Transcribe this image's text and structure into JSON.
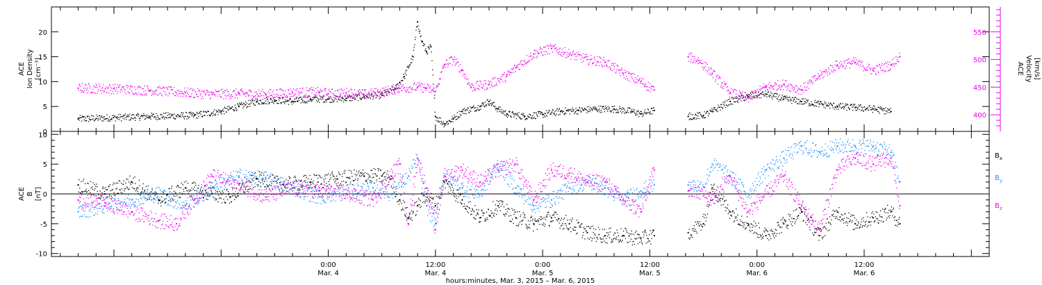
{
  "chart_data": [
    {
      "type": "scatter",
      "panel": "top",
      "ylabel": [
        "ACE",
        "Ion Density",
        "[cm⁻³]"
      ],
      "ylabel_right": [
        "ACE",
        "Velocity",
        "[km/s]"
      ],
      "ylim": [
        0,
        25
      ],
      "yticks": [
        "0",
        "5",
        "10",
        "15",
        "20"
      ],
      "ylim_right": [
        370,
        595
      ],
      "yticks_right": [
        "400",
        "450",
        "500",
        "550"
      ],
      "series": [
        {
          "name": "Ion Density",
          "axis": "left",
          "color": "#000000",
          "points": [
            [
              -28,
              2.5
            ],
            [
              -20,
              3
            ],
            [
              -15,
              3.2
            ],
            [
              -12,
              4
            ],
            [
              -10,
              5
            ],
            [
              -8,
              6
            ],
            [
              -6,
              6.3
            ],
            [
              -4,
              6
            ],
            [
              -2,
              6.5
            ],
            [
              0,
              6.5
            ],
            [
              2,
              6.6
            ],
            [
              4,
              7
            ],
            [
              6,
              7.3
            ],
            [
              7.5,
              8.5
            ],
            [
              8.5,
              11
            ],
            [
              9.5,
              15
            ],
            [
              10,
              22
            ],
            [
              10.5,
              18
            ],
            [
              11,
              16
            ],
            [
              11.5,
              17
            ],
            [
              12,
              3
            ],
            [
              13,
              1.5
            ],
            [
              14,
              2.5
            ],
            [
              15,
              4
            ],
            [
              17,
              5
            ],
            [
              18,
              6
            ],
            [
              19,
              4.5
            ],
            [
              20,
              3.5
            ],
            [
              22,
              3
            ],
            [
              24,
              3.4
            ],
            [
              26,
              4
            ],
            [
              28,
              4.2
            ],
            [
              30,
              4.5
            ],
            [
              32,
              4.5
            ],
            [
              34,
              4
            ],
            [
              35,
              3.5
            ],
            [
              36.5,
              4.2
            ]
          ],
          "gaps": [
            [
              36.8,
              40.2
            ]
          ]
        },
        {
          "name": "Velocity",
          "axis": "right",
          "color": "#ee00ee",
          "points": [
            [
              -28,
              448
            ],
            [
              -24,
              447
            ],
            [
              -20,
              444
            ],
            [
              -16,
              440
            ],
            [
              -13,
              437
            ],
            [
              -10,
              438
            ],
            [
              -7,
              437
            ],
            [
              -4,
              440
            ],
            [
              -1,
              441
            ],
            [
              0,
              438
            ],
            [
              2,
              440
            ],
            [
              4,
              437
            ],
            [
              6,
              441
            ],
            [
              8,
              448
            ],
            [
              10,
              450
            ],
            [
              11,
              448
            ],
            [
              12,
              442
            ],
            [
              12.5,
              465
            ],
            [
              13,
              490
            ],
            [
              14,
              500
            ],
            [
              15,
              480
            ],
            [
              16,
              450
            ],
            [
              18,
              455
            ],
            [
              20,
              470
            ],
            [
              21,
              485
            ],
            [
              23,
              510
            ],
            [
              25,
              520
            ],
            [
              27,
              510
            ],
            [
              29,
              500
            ],
            [
              31,
              495
            ],
            [
              33,
              475
            ],
            [
              35,
              460
            ],
            [
              36.5,
              445
            ]
          ],
          "gaps": [
            [
              36.8,
              40.2
            ]
          ]
        },
        {
          "name": "Ion Density",
          "axis": "left",
          "color": "#000000",
          "points": [
            [
              40.3,
              3
            ],
            [
              42,
              3.2
            ],
            [
              43,
              4
            ],
            [
              45,
              6
            ],
            [
              47,
              7
            ],
            [
              49,
              7.5
            ],
            [
              51,
              6.5
            ],
            [
              53,
              6
            ],
            [
              55,
              5.5
            ],
            [
              57,
              5
            ],
            [
              59,
              4.8
            ],
            [
              61,
              4.5
            ],
            [
              63,
              4
            ]
          ]
        },
        {
          "name": "Velocity",
          "axis": "right",
          "color": "#ee00ee",
          "points": [
            [
              40.3,
              505
            ],
            [
              41.5,
              498
            ],
            [
              43,
              475
            ],
            [
              45,
              440
            ],
            [
              47,
              430
            ],
            [
              49,
              450
            ],
            [
              51,
              455
            ],
            [
              53,
              445
            ],
            [
              55,
              470
            ],
            [
              57,
              490
            ],
            [
              59,
              495
            ],
            [
              61,
              480
            ],
            [
              63,
              490
            ],
            [
              64,
              505
            ]
          ]
        }
      ]
    },
    {
      "type": "scatter",
      "panel": "bottom",
      "ylabel": [
        "ACE",
        "B",
        "[nT]"
      ],
      "ylim": [
        -10.5,
        10.5
      ],
      "yticks": [
        "-10",
        "-5",
        "0",
        "5",
        "10"
      ],
      "legend": [
        {
          "label": "Bx",
          "sub": "x",
          "color": "#000000"
        },
        {
          "label": "By",
          "sub": "y",
          "color": "#1e90ff"
        },
        {
          "label": "Bz",
          "sub": "z",
          "color": "#ee00ee"
        }
      ],
      "series": [
        {
          "name": "Bx",
          "color": "#000000",
          "points": [
            [
              -28,
              1.5
            ],
            [
              -25,
              0
            ],
            [
              -22,
              2
            ],
            [
              -19,
              -1
            ],
            [
              -16,
              1
            ],
            [
              -13,
              0
            ],
            [
              -11,
              -0.5
            ],
            [
              -8,
              2.5
            ],
            [
              -5,
              1.5
            ],
            [
              -2,
              2
            ],
            [
              1,
              2.5
            ],
            [
              4,
              3
            ],
            [
              6,
              3
            ],
            [
              7,
              2.5
            ],
            [
              8,
              -1
            ],
            [
              9,
              -4
            ],
            [
              10,
              -2
            ],
            [
              11,
              0
            ],
            [
              12,
              -2
            ],
            [
              13,
              2
            ],
            [
              15,
              -1
            ],
            [
              17,
              -4
            ],
            [
              19,
              -2
            ],
            [
              21,
              -4
            ],
            [
              23,
              -5
            ],
            [
              25,
              -4
            ],
            [
              27,
              -5
            ],
            [
              29,
              -6.5
            ],
            [
              31,
              -7
            ],
            [
              33,
              -7
            ],
            [
              35,
              -7.5
            ],
            [
              36.5,
              -7
            ]
          ],
          "gaps": [
            [
              36.8,
              40.2
            ]
          ]
        },
        {
          "name": "By",
          "color": "#1e90ff",
          "points": [
            [
              -28,
              -3
            ],
            [
              -25,
              -2
            ],
            [
              -22,
              -1
            ],
            [
              -19,
              0
            ],
            [
              -16,
              -2
            ],
            [
              -13,
              1
            ],
            [
              -10,
              3
            ],
            [
              -7,
              2.5
            ],
            [
              -4,
              1
            ],
            [
              -1,
              -0.5
            ],
            [
              1,
              0
            ],
            [
              3,
              0.5
            ],
            [
              5,
              1
            ],
            [
              7,
              0
            ],
            [
              9,
              3
            ],
            [
              10,
              6
            ],
            [
              11,
              -2
            ],
            [
              12,
              -5
            ],
            [
              13,
              3
            ],
            [
              15,
              1
            ],
            [
              17,
              0
            ],
            [
              19,
              5
            ],
            [
              21,
              1
            ],
            [
              23,
              -2
            ],
            [
              25,
              -1
            ],
            [
              27,
              1
            ],
            [
              29,
              2
            ],
            [
              31,
              1
            ],
            [
              33,
              -1
            ],
            [
              35,
              0.5
            ],
            [
              36.5,
              1.5
            ]
          ],
          "gaps": [
            [
              36.8,
              40.2
            ]
          ]
        },
        {
          "name": "Bz",
          "color": "#ee00ee",
          "points": [
            [
              -28,
              -1
            ],
            [
              -25,
              -1.5
            ],
            [
              -22,
              -3
            ],
            [
              -19,
              -4.5
            ],
            [
              -17,
              -5
            ],
            [
              -15,
              -1
            ],
            [
              -13,
              3
            ],
            [
              -10,
              1.5
            ],
            [
              -7,
              -0.5
            ],
            [
              -4,
              1
            ],
            [
              -1,
              0.5
            ],
            [
              2,
              0
            ],
            [
              5,
              -1
            ],
            [
              7,
              3
            ],
            [
              8,
              5
            ],
            [
              9,
              -5
            ],
            [
              10,
              6
            ],
            [
              11,
              1
            ],
            [
              12,
              -6
            ],
            [
              13,
              3
            ],
            [
              15,
              4
            ],
            [
              17,
              2
            ],
            [
              19,
              4
            ],
            [
              21,
              5
            ],
            [
              23,
              -1
            ],
            [
              25,
              4
            ],
            [
              27,
              3.5
            ],
            [
              29,
              2
            ],
            [
              31,
              2
            ],
            [
              33,
              -1
            ],
            [
              35,
              -3
            ],
            [
              36.5,
              4
            ]
          ],
          "gaps": [
            [
              36.8,
              40.2
            ]
          ]
        },
        {
          "name": "Bx",
          "color": "#000000",
          "points": [
            [
              40.3,
              -6.5
            ],
            [
              42,
              -5
            ],
            [
              43,
              1
            ],
            [
              45,
              -3
            ],
            [
              47,
              -5
            ],
            [
              49,
              -7
            ],
            [
              51,
              -5
            ],
            [
              53,
              -3
            ],
            [
              55,
              -7
            ],
            [
              57,
              -3
            ],
            [
              59,
              -5
            ],
            [
              61,
              -4
            ],
            [
              63,
              -3
            ],
            [
              64,
              -5
            ]
          ]
        },
        {
          "name": "By",
          "color": "#1e90ff",
          "points": [
            [
              40.3,
              1.5
            ],
            [
              42,
              1.2
            ],
            [
              43,
              5
            ],
            [
              45,
              3
            ],
            [
              47,
              0
            ],
            [
              49,
              4
            ],
            [
              51,
              6
            ],
            [
              53,
              8
            ],
            [
              55,
              7
            ],
            [
              57,
              8
            ],
            [
              59,
              8
            ],
            [
              61,
              8
            ],
            [
              63,
              7
            ],
            [
              64,
              2
            ]
          ]
        },
        {
          "name": "Bz",
          "color": "#ee00ee",
          "points": [
            [
              40.3,
              0.5
            ],
            [
              42,
              0
            ],
            [
              43,
              -1
            ],
            [
              45,
              3
            ],
            [
              47,
              -3
            ],
            [
              49,
              0
            ],
            [
              51,
              3
            ],
            [
              53,
              -2
            ],
            [
              55,
              -6
            ],
            [
              57,
              4
            ],
            [
              59,
              6
            ],
            [
              61,
              5
            ],
            [
              63,
              6
            ],
            [
              64,
              -2
            ]
          ]
        }
      ]
    }
  ],
  "xaxis": {
    "title": "hours:minutes, Mar.  3, 2015 – Mar.  6, 2015",
    "range": [
      -31,
      74
    ],
    "major_ticks": [
      {
        "x": 0,
        "time": "0:00",
        "date": "Mar. 4"
      },
      {
        "x": 12,
        "time": "12:00",
        "date": "Mar. 4"
      },
      {
        "x": 24,
        "time": "0:00",
        "date": "Mar. 5"
      },
      {
        "x": 36,
        "time": "12:00",
        "date": "Mar. 5"
      },
      {
        "x": 48,
        "time": "0:00",
        "date": "Mar. 6"
      },
      {
        "x": 60,
        "time": "12:00",
        "date": "Mar. 6"
      }
    ]
  }
}
